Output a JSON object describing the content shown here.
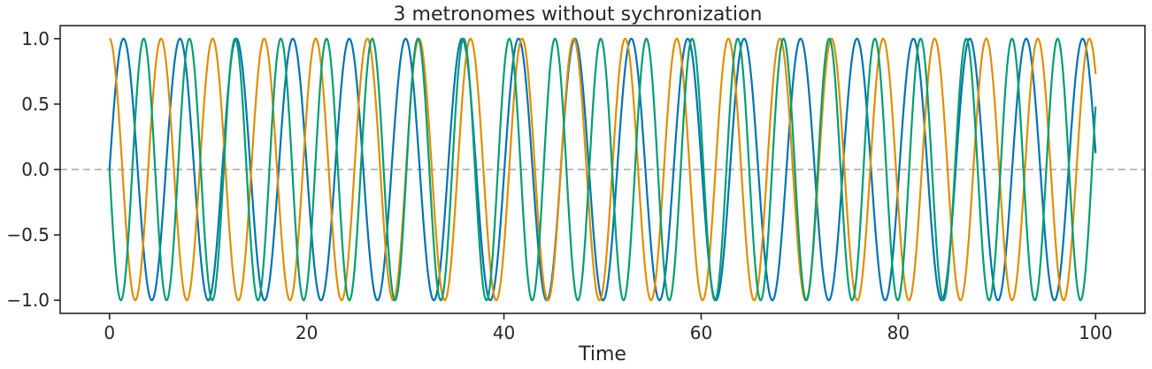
{
  "chart_data": {
    "type": "line",
    "title": "3 metronomes without sychronization",
    "xlabel": "Time",
    "ylabel": "",
    "xlim": [
      -5,
      105
    ],
    "ylim": [
      -1.1,
      1.1
    ],
    "x_ticks": [
      0,
      20,
      40,
      60,
      80,
      100
    ],
    "x_tick_labels": [
      "0",
      "20",
      "40",
      "60",
      "80",
      "100"
    ],
    "y_ticks": [
      -1.0,
      -0.5,
      0.0,
      0.5,
      1.0
    ],
    "y_tick_labels": [
      "−1.0",
      "−0.5",
      "0.0",
      "0.5",
      "1.0"
    ],
    "reference_line": {
      "y": 0.0,
      "style": "dashed",
      "color": "#bbbbbb"
    },
    "grid": false,
    "legend": "none",
    "x_range_data": [
      0,
      100
    ],
    "series": [
      {
        "color": "#0173b2",
        "function": "sin",
        "frequency": 0.1748,
        "phase": 0.0
      },
      {
        "color": "#de8f05",
        "function": "cos",
        "frequency": 0.1912,
        "phase": 0.0
      },
      {
        "color": "#029e73",
        "function": "sin",
        "frequency": 0.2158,
        "phase": -3.1416
      }
    ]
  }
}
